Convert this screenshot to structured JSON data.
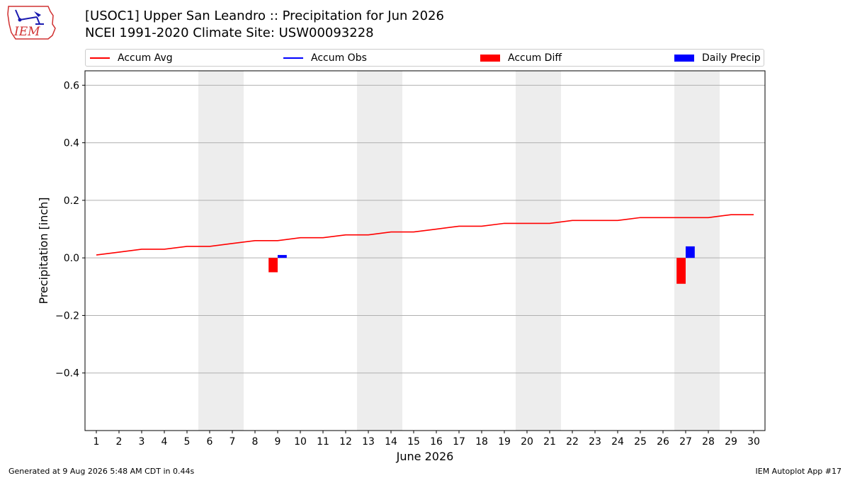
{
  "header": {
    "title_line1": "[USOC1] Upper San Leandro :: Precipitation for Jun 2026",
    "title_line2": "NCEI 1991-2020 Climate Site: USW00093228"
  },
  "logo": {
    "text": "IEM"
  },
  "footer": {
    "generated": "Generated at 9 Aug 2026 5:48 AM CDT in 0.44s",
    "app": "IEM Autoplot App #17"
  },
  "colors": {
    "avg": "#ff0000",
    "obs": "#0000ff",
    "diff": "#ff0000",
    "daily": "#0000ff",
    "weekend": "#ededed",
    "grid": "#b0b0b0"
  },
  "chart_data": {
    "type": "bar",
    "xlabel": "June 2026",
    "ylabel": "Precipitation [inch]",
    "xlim": [
      0.5,
      30.5
    ],
    "ylim": [
      -0.6,
      0.65
    ],
    "y_ticks": [
      -0.4,
      -0.2,
      0.0,
      0.2,
      0.4,
      0.6
    ],
    "y_tick_labels": [
      "−0.4",
      "−0.2",
      "0.0",
      "0.2",
      "0.4",
      "0.6"
    ],
    "x_ticks": [
      1,
      2,
      3,
      4,
      5,
      6,
      7,
      8,
      9,
      10,
      11,
      12,
      13,
      14,
      15,
      16,
      17,
      18,
      19,
      20,
      21,
      22,
      23,
      24,
      25,
      26,
      27,
      28,
      29,
      30
    ],
    "grid": "horizontal",
    "legend": {
      "placement": "top",
      "entries": [
        "Accum Avg",
        "Accum Obs",
        "Accum Diff",
        "Daily Precip"
      ]
    },
    "shaded_weekends": [
      [
        6,
        7
      ],
      [
        13,
        14
      ],
      [
        20,
        21
      ],
      [
        27,
        28
      ]
    ],
    "series": [
      {
        "name": "Accum Avg",
        "kind": "line",
        "x": [
          1,
          2,
          3,
          4,
          5,
          6,
          7,
          8,
          9,
          10,
          11,
          12,
          13,
          14,
          15,
          16,
          17,
          18,
          19,
          20,
          21,
          22,
          23,
          24,
          25,
          26,
          27,
          28,
          29,
          30
        ],
        "values": [
          0.01,
          0.02,
          0.03,
          0.03,
          0.04,
          0.04,
          0.05,
          0.06,
          0.06,
          0.07,
          0.07,
          0.08,
          0.08,
          0.09,
          0.09,
          0.1,
          0.11,
          0.11,
          0.12,
          0.12,
          0.12,
          0.13,
          0.13,
          0.13,
          0.14,
          0.14,
          0.14,
          0.14,
          0.15,
          0.15
        ]
      },
      {
        "name": "Accum Diff",
        "kind": "bar",
        "x": [
          9,
          27
        ],
        "values": [
          -0.05,
          -0.09
        ]
      },
      {
        "name": "Daily Precip",
        "kind": "bar",
        "x": [
          9,
          27
        ],
        "values": [
          0.01,
          0.04
        ]
      }
    ]
  }
}
